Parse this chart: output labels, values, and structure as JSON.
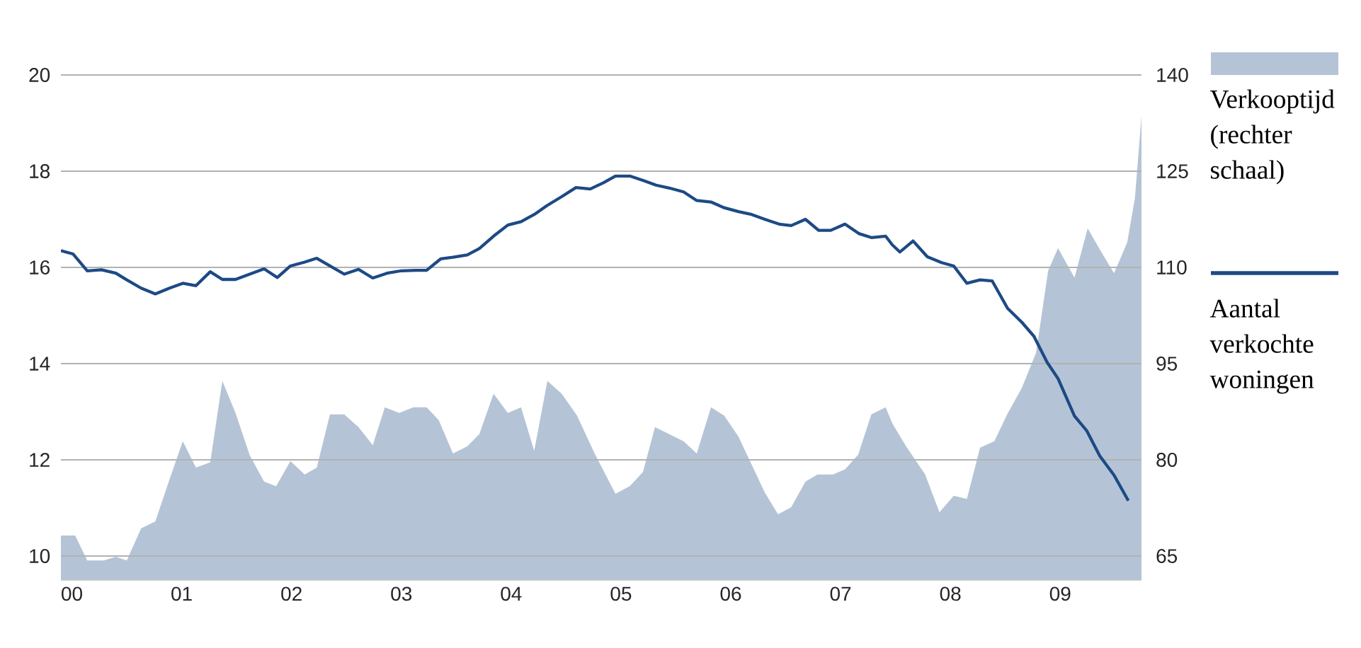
{
  "chart_data": {
    "type": "line",
    "xlim": [
      1999.9,
      2009.74
    ],
    "xticks": [
      {
        "value": 2000,
        "label": "00"
      },
      {
        "value": 2001,
        "label": "01"
      },
      {
        "value": 2002,
        "label": "02"
      },
      {
        "value": 2003,
        "label": "03"
      },
      {
        "value": 2004,
        "label": "04"
      },
      {
        "value": 2005,
        "label": "05"
      },
      {
        "value": 2006,
        "label": "06"
      },
      {
        "value": 2007,
        "label": "07"
      },
      {
        "value": 2008,
        "label": "08"
      },
      {
        "value": 2009,
        "label": "09"
      }
    ],
    "ylim": [
      9.5,
      20
    ],
    "yticks": [
      10,
      12,
      14,
      16,
      18,
      20
    ],
    "y2lim": [
      61.25,
      140
    ],
    "y2ticks": [
      65,
      80,
      95,
      110,
      125,
      140
    ],
    "grid": "y",
    "legend": "right",
    "series": [
      {
        "name": "Verkooptijd (rechter schaal)",
        "type": "area",
        "axis": "y2",
        "color": "#b4c4d6",
        "x": [
          1999.9,
          2000.03,
          2000.14,
          2000.29,
          2000.4,
          2000.5,
          2000.63,
          2000.76,
          2000.89,
          2001.01,
          2001.13,
          2001.26,
          2001.37,
          2001.49,
          2001.62,
          2001.75,
          2001.86,
          2001.99,
          2002.12,
          2002.23,
          2002.35,
          2002.48,
          2002.61,
          2002.74,
          2002.85,
          2002.98,
          2003.11,
          2003.23,
          2003.34,
          2003.47,
          2003.6,
          2003.71,
          2003.84,
          2003.97,
          2004.09,
          2004.21,
          2004.33,
          2004.46,
          2004.6,
          2004.76,
          2004.95,
          2005.08,
          2005.2,
          2005.31,
          2005.44,
          2005.57,
          2005.69,
          2005.82,
          2005.94,
          2006.07,
          2006.31,
          2006.43,
          2006.55,
          2006.68,
          2006.79,
          2006.93,
          2007.04,
          2007.16,
          2007.28,
          2007.41,
          2007.47,
          2007.6,
          2007.77,
          2007.9,
          2008.03,
          2008.15,
          2008.27,
          2008.4,
          2008.52,
          2008.65,
          2008.78,
          2008.89,
          2008.98,
          2009.13,
          2009.25,
          2009.36,
          2009.49,
          2009.61,
          2009.68,
          2009.74
        ],
        "values": [
          68.2,
          68.2,
          64.3,
          64.3,
          64.9,
          64.3,
          69.3,
          70.4,
          77.0,
          82.9,
          78.8,
          79.6,
          92.3,
          87.3,
          80.7,
          76.6,
          75.9,
          79.8,
          77.7,
          78.8,
          87.1,
          87.1,
          85.1,
          82.3,
          88.2,
          87.3,
          88.2,
          88.2,
          86.2,
          81.0,
          82.1,
          84.0,
          90.3,
          87.3,
          88.2,
          81.4,
          92.3,
          90.3,
          86.9,
          81.0,
          74.7,
          75.9,
          78.1,
          85.1,
          84.0,
          82.9,
          81.0,
          88.2,
          86.9,
          83.6,
          74.9,
          71.5,
          72.6,
          76.6,
          77.7,
          77.7,
          78.5,
          80.8,
          87.1,
          88.2,
          85.7,
          82.0,
          77.7,
          71.8,
          74.4,
          73.9,
          81.9,
          82.9,
          87.2,
          91.2,
          96.7,
          109.5,
          113.0,
          108.4,
          116.1,
          112.8,
          109.1,
          113.9,
          120.8,
          133.6
        ]
      },
      {
        "name": "Aantal verkochte woningen",
        "type": "line",
        "color": "#1d4a85",
        "x": [
          1999.9,
          2000.01,
          2000.14,
          2000.27,
          2000.4,
          2000.5,
          2000.63,
          2000.76,
          2000.89,
          2001.01,
          2001.13,
          2001.26,
          2001.37,
          2001.49,
          2001.62,
          2001.75,
          2001.87,
          2001.99,
          2002.12,
          2002.23,
          2002.35,
          2002.48,
          2002.61,
          2002.74,
          2002.87,
          2003.0,
          2003.13,
          2003.23,
          2003.36,
          2003.47,
          2003.6,
          2003.71,
          2003.84,
          2003.97,
          2004.09,
          2004.21,
          2004.33,
          2004.46,
          2004.59,
          2004.72,
          2004.84,
          2004.95,
          2005.08,
          2005.2,
          2005.32,
          2005.44,
          2005.57,
          2005.69,
          2005.82,
          2005.94,
          2006.07,
          2006.19,
          2006.31,
          2006.44,
          2006.55,
          2006.68,
          2006.8,
          2006.91,
          2007.04,
          2007.17,
          2007.28,
          2007.41,
          2007.47,
          2007.54,
          2007.66,
          2007.79,
          2007.92,
          2008.03,
          2008.15,
          2008.27,
          2008.38,
          2008.52,
          2008.65,
          2008.76,
          2008.88,
          2008.98,
          2009.13,
          2009.24,
          2009.36,
          2009.49,
          2009.62
        ],
        "values": [
          16.35,
          16.28,
          15.93,
          15.95,
          15.88,
          15.74,
          15.57,
          15.45,
          15.57,
          15.67,
          15.62,
          15.91,
          15.75,
          15.75,
          15.86,
          15.97,
          15.79,
          16.03,
          16.11,
          16.19,
          16.03,
          15.86,
          15.96,
          15.78,
          15.88,
          15.93,
          15.94,
          15.94,
          16.18,
          16.21,
          16.26,
          16.39,
          16.65,
          16.88,
          16.95,
          17.1,
          17.29,
          17.47,
          17.66,
          17.63,
          17.76,
          17.9,
          17.9,
          17.81,
          17.71,
          17.65,
          17.57,
          17.39,
          17.36,
          17.24,
          17.16,
          17.1,
          17.0,
          16.9,
          16.87,
          17.0,
          16.77,
          16.77,
          16.9,
          16.7,
          16.62,
          16.65,
          16.47,
          16.32,
          16.55,
          16.22,
          16.1,
          16.03,
          15.67,
          15.74,
          15.72,
          15.15,
          14.86,
          14.57,
          14.03,
          13.69,
          12.91,
          12.61,
          12.08,
          11.68,
          11.15
        ]
      }
    ]
  }
}
